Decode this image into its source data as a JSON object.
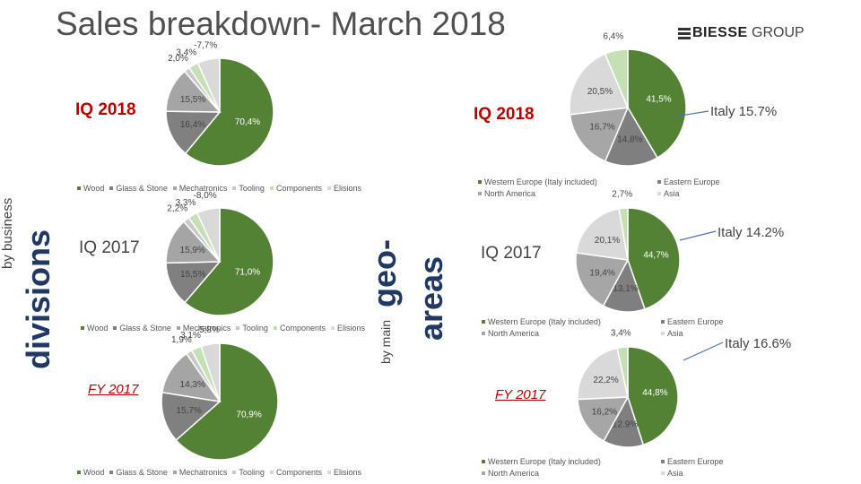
{
  "title": "Sales breakdown- March 2018",
  "logo": {
    "brand": "BIESSE",
    "suffix": "GROUP"
  },
  "side_labels": {
    "business_prefix": "by business",
    "business_main": "divisions",
    "geo_prefix": "by main",
    "geo_main_1": "geo-",
    "geo_main_2": "areas"
  },
  "legend_divisions": [
    "Wood",
    "Glass & Stone",
    "Mechatronics",
    "Tooling",
    "Components",
    "Elisions"
  ],
  "legend_geo": [
    "Western Europe (Italy included)",
    "Eastern Europe",
    "North America",
    "Asia"
  ],
  "colors": {
    "Wood": "#548235",
    "Glass & Stone": "#808080",
    "Mechatronics": "#a5a5a5",
    "Tooling": "#c9c9c9",
    "Components": "#c5e0b4",
    "Elisions": "#d9d9d9",
    "Western Europe (Italy included)": "#548235",
    "Eastern Europe": "#7f7f7f",
    "North America": "#a6a6a6",
    "Asia": "#d9d9d9",
    "Rest of World": "#c5e0b4",
    "title_red": "#c00000"
  },
  "chart_data": [
    {
      "type": "pie",
      "title": "IQ 2018",
      "group": "divisions",
      "slices": [
        {
          "name": "Wood",
          "value": 70.4,
          "label": "70,4%"
        },
        {
          "name": "Glass & Stone",
          "value": 16.4,
          "label": "16,4%"
        },
        {
          "name": "Mechatronics",
          "value": 15.5,
          "label": "15,5%"
        },
        {
          "name": "Tooling",
          "value": 2.0,
          "label": "2,0%"
        },
        {
          "name": "Components",
          "value": 3.4,
          "label": "3,4%"
        },
        {
          "name": "Elisions",
          "value": -7.7,
          "label": "-7,7%"
        }
      ]
    },
    {
      "type": "pie",
      "title": "IQ 2017",
      "group": "divisions",
      "slices": [
        {
          "name": "Wood",
          "value": 71.0,
          "label": "71,0%"
        },
        {
          "name": "Glass & Stone",
          "value": 15.5,
          "label": "15,5%"
        },
        {
          "name": "Mechatronics",
          "value": 15.9,
          "label": "15,9%"
        },
        {
          "name": "Tooling",
          "value": 2.2,
          "label": "2,2%"
        },
        {
          "name": "Components",
          "value": 3.3,
          "label": "3,3%"
        },
        {
          "name": "Elisions",
          "value": -8.0,
          "label": "-8,0%"
        }
      ]
    },
    {
      "type": "pie",
      "title": "FY 2017",
      "group": "divisions",
      "slices": [
        {
          "name": "Wood",
          "value": 70.9,
          "label": "70,9%"
        },
        {
          "name": "Glass & Stone",
          "value": 15.7,
          "label": "15,7%"
        },
        {
          "name": "Mechatronics",
          "value": 14.3,
          "label": "14,3%"
        },
        {
          "name": "Tooling",
          "value": 1.9,
          "label": "1,9%"
        },
        {
          "name": "Components",
          "value": 3.1,
          "label": "3,1%"
        },
        {
          "name": "Elisions",
          "value": -5.8,
          "label": "-5,8%"
        }
      ]
    },
    {
      "type": "pie",
      "title": "IQ 2018",
      "group": "geo",
      "italy": "Italy 15.7%",
      "slices": [
        {
          "name": "Western Europe (Italy included)",
          "value": 41.5,
          "label": "41,5%"
        },
        {
          "name": "Eastern Europe",
          "value": 14.8,
          "label": "14,8%"
        },
        {
          "name": "North America",
          "value": 16.7,
          "label": "16,7%"
        },
        {
          "name": "Asia",
          "value": 20.5,
          "label": "20,5%"
        },
        {
          "name": "Rest of World",
          "value": 6.4,
          "label": "6,4%"
        }
      ]
    },
    {
      "type": "pie",
      "title": "IQ 2017",
      "group": "geo",
      "italy": "Italy 14.2%",
      "slices": [
        {
          "name": "Western Europe (Italy included)",
          "value": 44.7,
          "label": "44,7%"
        },
        {
          "name": "Eastern Europe",
          "value": 13.1,
          "label": "13,1%"
        },
        {
          "name": "North America",
          "value": 19.4,
          "label": "19,4%"
        },
        {
          "name": "Asia",
          "value": 20.1,
          "label": "20,1%"
        },
        {
          "name": "Rest of World",
          "value": 2.7,
          "label": "2,7%"
        }
      ]
    },
    {
      "type": "pie",
      "title": "FY 2017",
      "group": "geo",
      "italy": "Italy 16.6%",
      "slices": [
        {
          "name": "Western Europe (Italy included)",
          "value": 44.8,
          "label": "44,8%"
        },
        {
          "name": "Eastern Europe",
          "value": 12.9,
          "label": "12.9%"
        },
        {
          "name": "North America",
          "value": 16.2,
          "label": "16,2%"
        },
        {
          "name": "Asia",
          "value": 22.2,
          "label": "22,2%"
        },
        {
          "name": "Rest of World",
          "value": 3.4,
          "label": "3,4%"
        }
      ]
    }
  ]
}
